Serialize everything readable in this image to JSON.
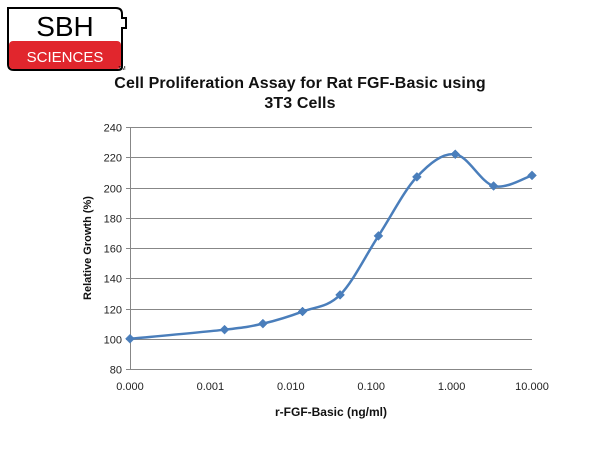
{
  "brand": {
    "logo_line1": "SBH",
    "logo_line2": "SCIENCES",
    "logo_tm": "TM",
    "accent_red": "#e1262d",
    "outline": "#000000"
  },
  "chart_data": {
    "type": "line",
    "title": "Cell Proliferation Assay for Rat FGF-Basic using 3T3 Cells",
    "xlabel": "r-FGF-Basic (ng/ml)",
    "ylabel": "Relative Growth (%)",
    "x_scale": "log",
    "x_ticks": [
      "0.000",
      "0.001",
      "0.010",
      "0.100",
      "1.000",
      "10.000"
    ],
    "y_ticks": [
      80,
      100,
      120,
      140,
      160,
      180,
      200,
      220,
      240
    ],
    "ylim": [
      80,
      240
    ],
    "grid": "horizontal",
    "legend": "none",
    "series": [
      {
        "color": "#4a7ebb",
        "marker": "diamond",
        "points": [
          {
            "x": 0.0001,
            "y": 100
          },
          {
            "x": 0.0015,
            "y": 106
          },
          {
            "x": 0.0045,
            "y": 110
          },
          {
            "x": 0.014,
            "y": 118
          },
          {
            "x": 0.041,
            "y": 129
          },
          {
            "x": 0.123,
            "y": 168
          },
          {
            "x": 0.37,
            "y": 207
          },
          {
            "x": 1.11,
            "y": 222
          },
          {
            "x": 3.33,
            "y": 201
          },
          {
            "x": 10.0,
            "y": 208
          }
        ]
      }
    ]
  }
}
